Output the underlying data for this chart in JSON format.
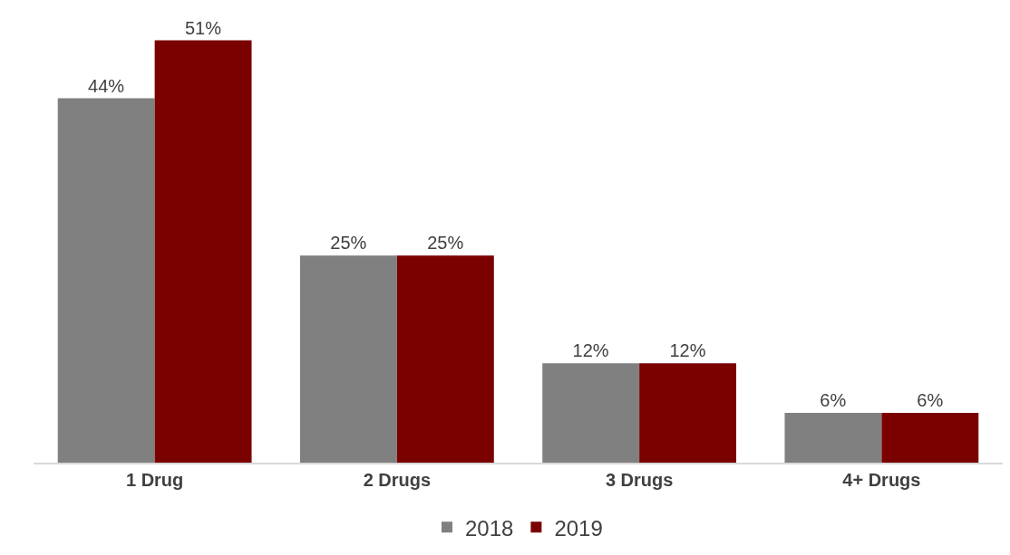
{
  "chart_data": {
    "type": "bar",
    "categories": [
      "1 Drug",
      "2 Drugs",
      "3 Drugs",
      "4+ Drugs"
    ],
    "series": [
      {
        "name": "2018",
        "color": "#808080",
        "values": [
          44,
          25,
          12,
          6
        ],
        "value_labels": [
          "44%",
          "25%",
          "12%",
          "6%"
        ]
      },
      {
        "name": "2019",
        "color": "#7b0000",
        "values": [
          51,
          25,
          12,
          6
        ],
        "value_labels": [
          "51%",
          "25%",
          "12%",
          "6%"
        ]
      }
    ],
    "legend": "bottom",
    "tick_labels": "x"
  }
}
